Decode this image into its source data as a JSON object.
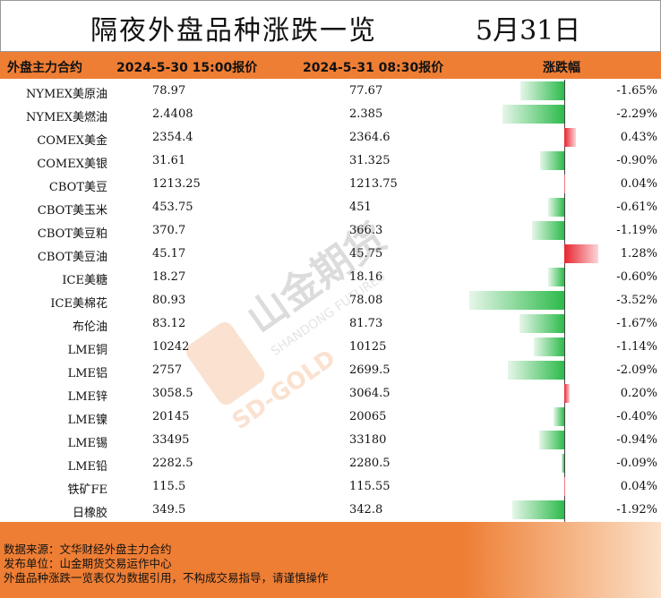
{
  "title": "隔夜外盘品种涨跌一览",
  "date": "5月31日",
  "headers": {
    "name": "外盘主力合约",
    "prev": "2024-5-30 15:00报价",
    "cur": "2024-5-31 08:30报价",
    "change": "涨跌幅"
  },
  "colors": {
    "accent": "#ee7e34",
    "up": "#e8232f",
    "down": "#2dbb4b"
  },
  "chart_data": {
    "type": "table",
    "columns": [
      "外盘主力合约",
      "2024-5-30 15:00报价",
      "2024-5-31 08:30报价",
      "涨跌幅"
    ],
    "rows": [
      {
        "name": "NYMEX美原油",
        "prev": "78.97",
        "cur": "77.67",
        "change": -1.65,
        "label": "-1.65%"
      },
      {
        "name": "NYMEX美燃油",
        "prev": "2.4408",
        "cur": "2.385",
        "change": -2.29,
        "label": "-2.29%"
      },
      {
        "name": "COMEX美金",
        "prev": "2354.4",
        "cur": "2364.6",
        "change": 0.43,
        "label": "0.43%"
      },
      {
        "name": "COMEX美银",
        "prev": "31.61",
        "cur": "31.325",
        "change": -0.9,
        "label": "-0.90%"
      },
      {
        "name": "CBOT美豆",
        "prev": "1213.25",
        "cur": "1213.75",
        "change": 0.04,
        "label": "0.04%"
      },
      {
        "name": "CBOT美玉米",
        "prev": "453.75",
        "cur": "451",
        "change": -0.61,
        "label": "-0.61%"
      },
      {
        "name": "CBOT美豆粕",
        "prev": "370.7",
        "cur": "366.3",
        "change": -1.19,
        "label": "-1.19%"
      },
      {
        "name": "CBOT美豆油",
        "prev": "45.17",
        "cur": "45.75",
        "change": 1.28,
        "label": "1.28%"
      },
      {
        "name": "ICE美糖",
        "prev": "18.27",
        "cur": "18.16",
        "change": -0.6,
        "label": "-0.60%"
      },
      {
        "name": "ICE美棉花",
        "prev": "80.93",
        "cur": "78.08",
        "change": -3.52,
        "label": "-3.52%"
      },
      {
        "name": "布伦油",
        "prev": "83.12",
        "cur": "81.73",
        "change": -1.67,
        "label": "-1.67%"
      },
      {
        "name": "LME铜",
        "prev": "10242",
        "cur": "10125",
        "change": -1.14,
        "label": "-1.14%"
      },
      {
        "name": "LME铝",
        "prev": "2757",
        "cur": "2699.5",
        "change": -2.09,
        "label": "-2.09%"
      },
      {
        "name": "LME锌",
        "prev": "3058.5",
        "cur": "3064.5",
        "change": 0.2,
        "label": "0.20%"
      },
      {
        "name": "LME镍",
        "prev": "20145",
        "cur": "20065",
        "change": -0.4,
        "label": "-0.40%"
      },
      {
        "name": "LME锡",
        "prev": "33495",
        "cur": "33180",
        "change": -0.94,
        "label": "-0.94%"
      },
      {
        "name": "LME铅",
        "prev": "2282.5",
        "cur": "2280.5",
        "change": -0.09,
        "label": "-0.09%"
      },
      {
        "name": "铁矿FE",
        "prev": "115.5",
        "cur": "115.55",
        "change": 0.04,
        "label": "0.04%"
      },
      {
        "name": "日橡胶",
        "prev": "349.5",
        "cur": "342.8",
        "change": -1.92,
        "label": "-1.92%"
      }
    ]
  },
  "footer": {
    "source": "数据来源：文华财经外盘主力合约",
    "publisher": "发布单位：山金期货交易运作中心",
    "disclaimer": "外盘品种涨跌一览表仅为数据引用，不构成交易指导，请谨慎操作"
  },
  "watermark": {
    "brand_cn": "山金期货",
    "brand_en": "SHANDONG FUTURES",
    "logo_text": "SD-GOLD"
  }
}
